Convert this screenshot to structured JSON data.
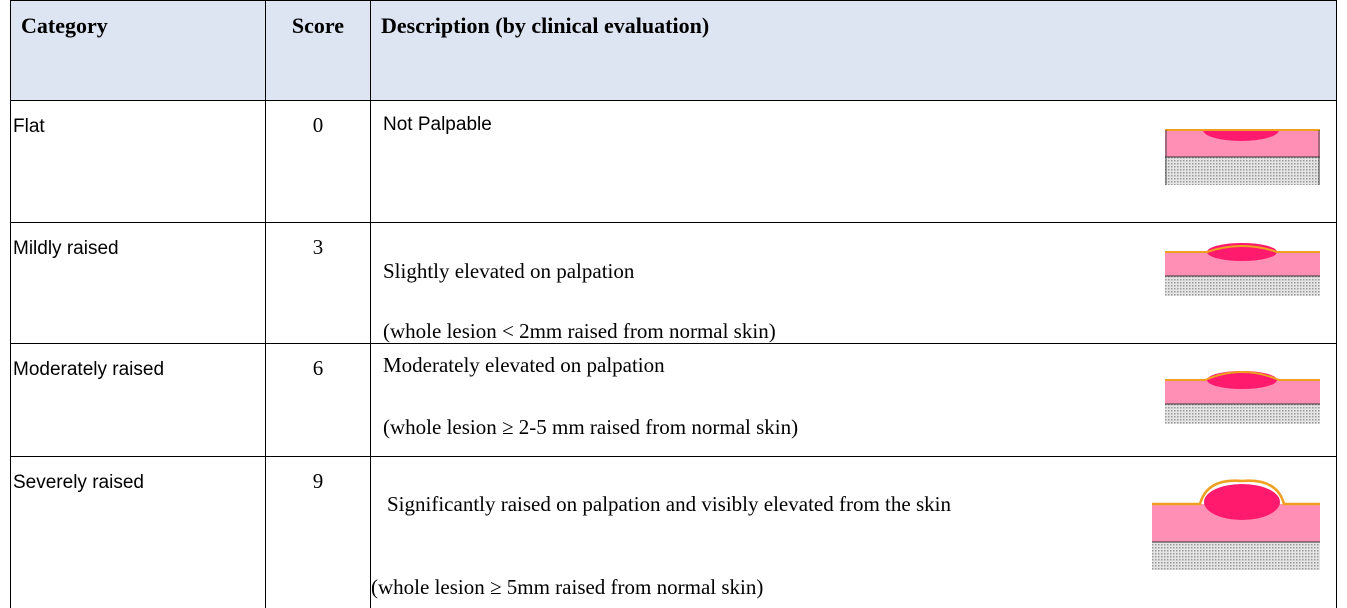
{
  "table": {
    "header": [
      "Category",
      "Score",
      "Description (by clinical evaluation)"
    ],
    "rows": [
      {
        "category": "Flat",
        "score": 0,
        "description": [
          "Not Palpable"
        ]
      },
      {
        "category": "Mildly raised",
        "score": 3,
        "description": [
          "Slightly elevated on palpation",
          "(whole lesion < 2mm raised from normal skin)"
        ]
      },
      {
        "category": "Moderately raised",
        "score": 6,
        "description": [
          "Moderately elevated on palpation",
          "(whole lesion ≥ 2-5 mm raised from normal skin)"
        ]
      },
      {
        "category": "Severely raised",
        "score": 9,
        "description": [
          "Significantly raised on palpation and visibly elevated from the skin",
          "(whole lesion ≥ 5mm raised from normal skin)"
        ]
      }
    ]
  }
}
